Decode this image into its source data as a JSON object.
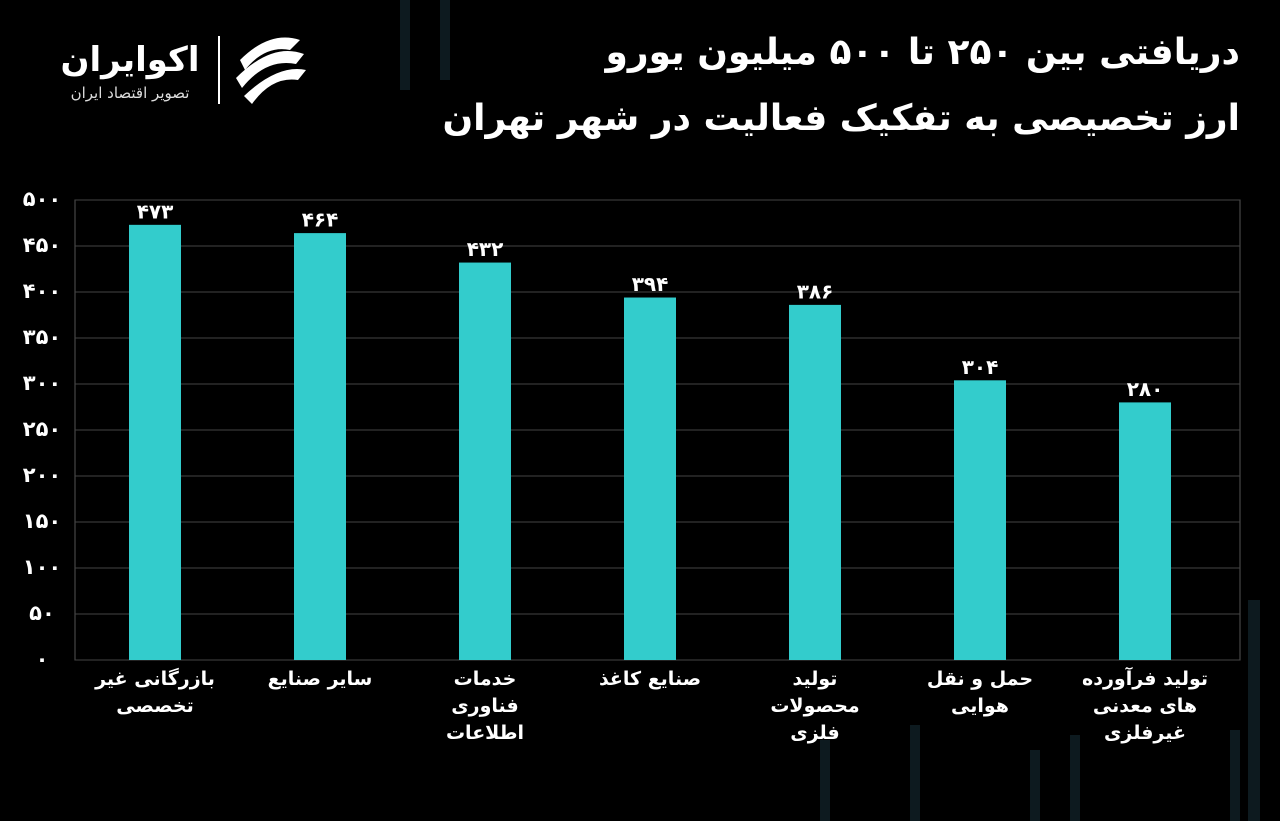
{
  "logo": {
    "name": "اکوایران",
    "tagline": "تصویر اقتصاد ایران"
  },
  "chart_data": {
    "type": "bar",
    "title": [
      "دریافتی بین ۲۵۰ تا ۵۰۰ میلیون یورو",
      "ارز تخصیصی به تفکیک فعالیت در شهر تهران"
    ],
    "categories": [
      "بازرگانی غیر تخصصی",
      "سایر صنایع",
      "خدمات فناوری اطلاعات",
      "صنایع کاغذ",
      "تولید محصولات فلزی",
      "حمل و نقل هوایی",
      "تولید فرآورده های معدنی غیرفلزی"
    ],
    "values": [
      473,
      464,
      432,
      394,
      386,
      304,
      280
    ],
    "value_labels": [
      "۴۷۳",
      "۴۶۴",
      "۴۳۲",
      "۳۹۴",
      "۳۸۶",
      "۳۰۴",
      "۲۸۰"
    ],
    "color": "#33cccc",
    "ylim": [
      0,
      500
    ],
    "yticks": [
      {
        "value": 0,
        "label": "۰"
      },
      {
        "value": 50,
        "label": "۵۰"
      },
      {
        "value": 100,
        "label": "۱۰۰"
      },
      {
        "value": 150,
        "label": "۱۵۰"
      },
      {
        "value": 200,
        "label": "۲۰۰"
      },
      {
        "value": 250,
        "label": "۲۵۰"
      },
      {
        "value": 300,
        "label": "۳۰۰"
      },
      {
        "value": 350,
        "label": "۳۵۰"
      },
      {
        "value": 400,
        "label": "۴۰۰"
      },
      {
        "value": 450,
        "label": "۴۵۰"
      },
      {
        "value": 500,
        "label": "۵۰۰"
      }
    ],
    "grid": true
  }
}
